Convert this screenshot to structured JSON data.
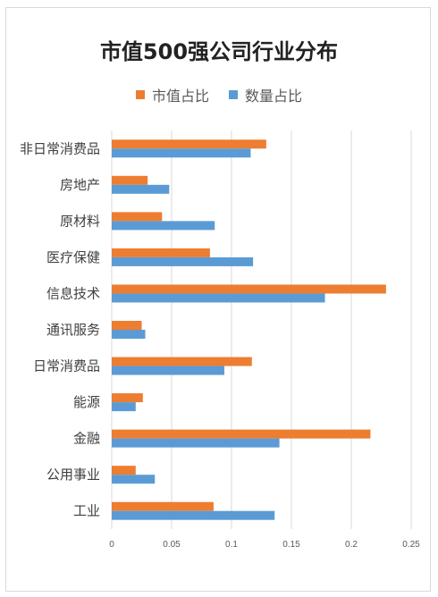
{
  "chart_data": {
    "type": "bar",
    "orientation": "horizontal",
    "title": "市值500强公司行业分布",
    "categories": [
      "非日常消费品",
      "房地产",
      "原材料",
      "医疗保健",
      "信息技术",
      "通讯服务",
      "日常消费品",
      "能源",
      "金融",
      "公用事业",
      "工业"
    ],
    "series": [
      {
        "name": "市值占比",
        "color": "#ED7D31",
        "values": [
          0.129,
          0.03,
          0.042,
          0.082,
          0.229,
          0.025,
          0.117,
          0.026,
          0.216,
          0.02,
          0.085
        ]
      },
      {
        "name": "数量占比",
        "color": "#5B9BD5",
        "values": [
          0.116,
          0.048,
          0.086,
          0.118,
          0.178,
          0.028,
          0.094,
          0.02,
          0.14,
          0.036,
          0.136
        ]
      }
    ],
    "xticks": [
      "0",
      "0.05",
      "0.1",
      "0.15",
      "0.2",
      "0.25"
    ],
    "xlim": [
      0,
      0.25
    ],
    "grid": true,
    "legend_position": "top"
  }
}
